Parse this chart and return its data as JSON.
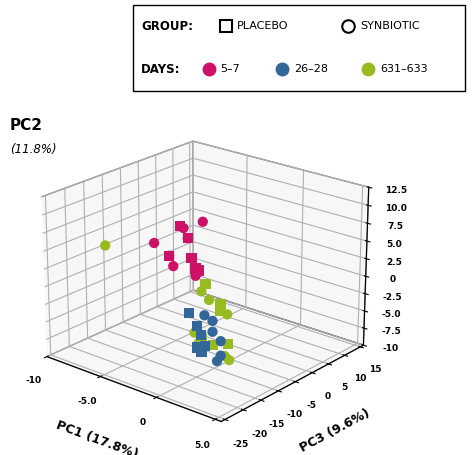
{
  "colors": {
    "days_5_7": "#CC1166",
    "days_26_28": "#336699",
    "days_631_633": "#99BB22"
  },
  "data": {
    "placebo_5_7": {
      "pc1": [
        -3,
        -2,
        -2,
        -1,
        -3,
        -1
      ],
      "pc2": [
        8.5,
        7.5,
        4.5,
        4.0,
        5.0,
        3.5
      ],
      "pc3": [
        -10,
        -11,
        -10,
        -12,
        -13,
        -11
      ]
    },
    "synbiotic_5_7": {
      "pc1": [
        -4,
        -3,
        -2,
        -1,
        -3,
        -2,
        -1
      ],
      "pc2": [
        6.5,
        5.0,
        4.5,
        10.0,
        8.0,
        7.5,
        3.0
      ],
      "pc3": [
        -14,
        -13,
        -15,
        -10,
        -9,
        -11,
        -12
      ]
    },
    "placebo_26_28": {
      "pc1": [
        0,
        1,
        1,
        2,
        1,
        2
      ],
      "pc2": [
        -0.5,
        -1.5,
        -3.0,
        -3.5,
        -4.5,
        -4.0
      ],
      "pc3": [
        -17,
        -18,
        -17,
        -19,
        -18,
        -20
      ]
    },
    "synbiotic_26_28": {
      "pc1": [
        1,
        2,
        2,
        3,
        3,
        3
      ],
      "pc2": [
        -0.5,
        -0.5,
        -2.0,
        -2.5,
        -4.5,
        -5.0
      ],
      "pc3": [
        -16,
        -17,
        -17,
        -18,
        -18,
        -19
      ]
    },
    "placebo_631_633": {
      "pc1": [
        -2,
        -1,
        0,
        -1,
        -2,
        -1
      ],
      "pc2": [
        0.0,
        -3.5,
        -7.5,
        -8.0,
        -7.5,
        -2.5
      ],
      "pc3": [
        -6,
        -5,
        -6,
        -7,
        -7,
        -5
      ]
    },
    "synbiotic_631_633": {
      "pc1": [
        -3,
        -2,
        -1,
        0,
        -3,
        -2,
        -1,
        1
      ],
      "pc2": [
        -2.0,
        -2.5,
        -3.0,
        -9.0,
        -7.5,
        -8.0,
        -4.5,
        -8.5
      ],
      "pc3": [
        -4,
        -5,
        -5,
        -7,
        -6,
        -8,
        -3,
        -9
      ]
    },
    "outlier_631_633": {
      "pc1": [
        -5
      ],
      "pc2": [
        7.8
      ],
      "pc3": [
        -24
      ]
    }
  },
  "pc1_lim": [
    -10,
    5.5
  ],
  "pc2_lim": [
    -10,
    12.5
  ],
  "pc3_lim": [
    -26,
    16
  ],
  "pc1_ticks": [
    -10,
    -5,
    0,
    5
  ],
  "pc1_ticklabels": [
    "-10",
    "-5.0",
    "0",
    "5.0"
  ],
  "pc2_ticks": [
    -10,
    -7.5,
    -5.0,
    -2.5,
    0,
    2.5,
    5.0,
    7.5,
    10.0,
    12.5
  ],
  "pc2_ticklabels": [
    "-10",
    "-7.5",
    "-5.0",
    "-2.5",
    "0",
    "2.5",
    "5.0",
    "7.5",
    "10.0",
    "12.5"
  ],
  "pc3_ticks": [
    -25,
    -20,
    -15,
    -10,
    -5,
    0,
    5,
    10,
    15
  ],
  "pc3_ticklabels": [
    "-25",
    "-20",
    "-15",
    "-10",
    "-5",
    "0",
    "5",
    "10",
    "15"
  ]
}
